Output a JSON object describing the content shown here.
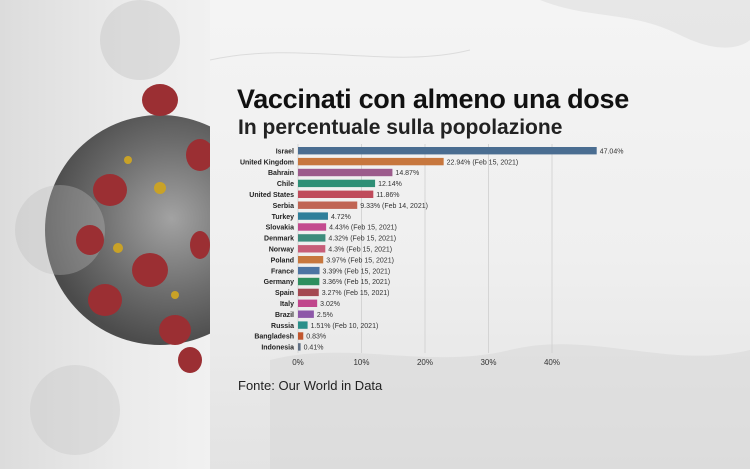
{
  "header": {
    "title": "Vaccinati con almeno una dose",
    "subtitle": "In percentuale sulla popolazione"
  },
  "footer": {
    "source": "Fonte: Our World in Data"
  },
  "chart_data": {
    "type": "bar",
    "orientation": "horizontal",
    "title": "Vaccinati con almeno una dose",
    "subtitle": "In percentuale sulla popolazione",
    "xlim": [
      0,
      48
    ],
    "xticks": [
      "0%",
      "10%",
      "20%",
      "30%",
      "40%"
    ],
    "grid": true,
    "categories": [
      "Israel",
      "United Kingdom",
      "Bahrain",
      "Chile",
      "United States",
      "Serbia",
      "Turkey",
      "Slovakia",
      "Denmark",
      "Norway",
      "Poland",
      "France",
      "Germany",
      "Spain",
      "Italy",
      "Brazil",
      "Russia",
      "Bangladesh",
      "Indonesia"
    ],
    "values": [
      47.04,
      22.94,
      14.87,
      12.14,
      11.86,
      9.33,
      4.72,
      4.43,
      4.32,
      4.3,
      3.97,
      3.39,
      3.36,
      3.27,
      3.02,
      2.5,
      1.51,
      0.83,
      0.41
    ],
    "value_labels": [
      "47.04%",
      "22.94% (Feb 15, 2021)",
      "14.87%",
      "12.14%",
      "11.86%",
      "9.33% (Feb 14, 2021)",
      "4.72%",
      "4.43% (Feb 15, 2021)",
      "4.32% (Feb 15, 2021)",
      "4.3% (Feb 15, 2021)",
      "3.97% (Feb 15, 2021)",
      "3.39% (Feb 15, 2021)",
      "3.36% (Feb 15, 2021)",
      "3.27% (Feb 15, 2021)",
      "3.02%",
      "2.5%",
      "1.51% (Feb 10, 2021)",
      "0.83%",
      "0.41%"
    ],
    "colors": [
      "#4a6d91",
      "#c7773e",
      "#9c5b8c",
      "#2e8f76",
      "#bf4b5b",
      "#c06554",
      "#2f7f9a",
      "#c44a8f",
      "#3d8c7c",
      "#c75d78",
      "#c7773e",
      "#4c74a3",
      "#2e8f5e",
      "#a44952",
      "#c0468c",
      "#8d58a8",
      "#2a8f8a",
      "#c1562e",
      "#5f6f84"
    ]
  }
}
